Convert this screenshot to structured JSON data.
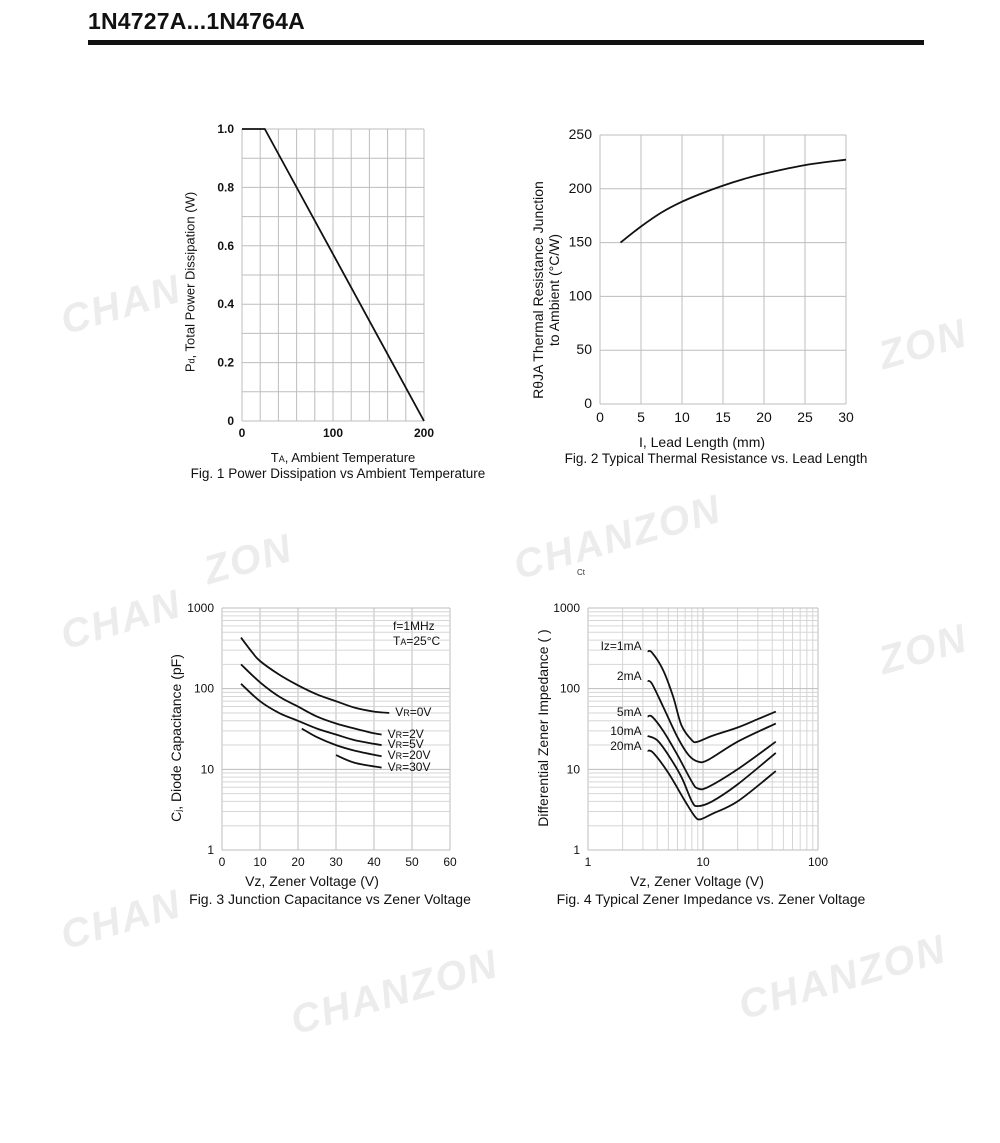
{
  "header": {
    "title": "1N4727A...1N4764A"
  },
  "watermarks": [
    "CHANZON",
    "CHAN",
    "ZON"
  ],
  "artifact_text": "Ct",
  "chart_data": [
    {
      "id": "fig1",
      "type": "line",
      "title": "Fig. 1 Power Dissipation vs Ambient Temperature",
      "xlabel": {
        "main": "T",
        "sub": "A",
        "rest": ", Ambient Temperature"
      },
      "ylabel": {
        "main": "P",
        "sub": "d",
        "rest": ", Total Power Dissipation (W)"
      },
      "xscale": "linear",
      "yscale": "linear",
      "xlim": [
        0,
        200
      ],
      "ylim": [
        0,
        1.0
      ],
      "grid": true,
      "x_grid_step": 20,
      "y_grid_step": 0.1,
      "xticks": [
        {
          "v": 0,
          "label": "0"
        },
        {
          "v": 100,
          "label": "100"
        },
        {
          "v": 200,
          "label": "200"
        }
      ],
      "yticks": [
        {
          "v": 0,
          "label": "0"
        },
        {
          "v": 0.2,
          "label": "0.2"
        },
        {
          "v": 0.4,
          "label": "0.4"
        },
        {
          "v": 0.6,
          "label": "0.6"
        },
        {
          "v": 0.8,
          "label": "0.8"
        },
        {
          "v": 1.0,
          "label": "1.0"
        }
      ],
      "tick_bold": true,
      "smooth": false,
      "series": [
        {
          "x": [
            0,
            25,
            200
          ],
          "y": [
            1.0,
            1.0,
            0
          ]
        }
      ]
    },
    {
      "id": "fig2",
      "type": "line",
      "title": "Fig. 2 Typical Thermal Resistance vs. Lead Length",
      "xlabel": {
        "main": "I, Lead Length (mm)"
      },
      "ylabel": {
        "line1": "RθJA  Thermal Resistance Junction",
        "line2": "to Ambient (°C/W)"
      },
      "xscale": "linear",
      "yscale": "linear",
      "xlim": [
        0,
        30
      ],
      "ylim": [
        0,
        250
      ],
      "grid": true,
      "x_grid_step": 5,
      "y_grid_step": 50,
      "xticks": [
        {
          "v": 0,
          "label": "0"
        },
        {
          "v": 5,
          "label": "5"
        },
        {
          "v": 10,
          "label": "10"
        },
        {
          "v": 15,
          "label": "15"
        },
        {
          "v": 20,
          "label": "20"
        },
        {
          "v": 25,
          "label": "25"
        },
        {
          "v": 30,
          "label": "30"
        }
      ],
      "yticks": [
        {
          "v": 0,
          "label": "0"
        },
        {
          "v": 50,
          "label": "50"
        },
        {
          "v": 100,
          "label": "100"
        },
        {
          "v": 150,
          "label": "150"
        },
        {
          "v": 200,
          "label": "200"
        },
        {
          "v": 250,
          "label": "250"
        }
      ],
      "tick_bold": false,
      "smooth": true,
      "series": [
        {
          "x": [
            2.5,
            5,
            7.5,
            10,
            12.5,
            15,
            17.5,
            20,
            25,
            30
          ],
          "y": [
            150,
            165,
            178,
            188,
            196,
            203,
            209,
            214,
            222,
            227
          ]
        }
      ]
    },
    {
      "id": "fig3",
      "type": "line",
      "title": "Fig. 3 Junction Capacitance vs Zener Voltage",
      "xlabel": {
        "main": "Vz, Zener Voltage (V)"
      },
      "ylabel": {
        "main": "C",
        "sub": "j",
        "rest": ", Diode Capacitance (pF)"
      },
      "annotations": [
        {
          "main": "f=1MHz"
        },
        {
          "main": "T",
          "sub": "A",
          "rest": "=25°C"
        }
      ],
      "xscale": "linear",
      "yscale": "log",
      "xlim": [
        0,
        60
      ],
      "ylim": [
        1,
        1000
      ],
      "grid": true,
      "x_grid_step": 10,
      "xticks": [
        {
          "v": 0,
          "label": "0"
        },
        {
          "v": 10,
          "label": "10"
        },
        {
          "v": 20,
          "label": "20"
        },
        {
          "v": 30,
          "label": "30"
        },
        {
          "v": 40,
          "label": "40"
        },
        {
          "v": 50,
          "label": "50"
        },
        {
          "v": 60,
          "label": "60"
        }
      ],
      "yticks": [
        {
          "v": 1,
          "label": "1"
        },
        {
          "v": 10,
          "label": "10"
        },
        {
          "v": 100,
          "label": "100"
        },
        {
          "v": 1000,
          "label": "1000"
        }
      ],
      "tick_bold": false,
      "smooth": true,
      "label_side": "right",
      "series": [
        {
          "name": "VR=0V",
          "label_main": "V",
          "label_sub": "R",
          "label_rest": "=0V",
          "x": [
            5,
            8,
            10,
            15,
            20,
            25,
            30,
            35,
            40,
            44
          ],
          "y": [
            430,
            280,
            220,
            150,
            110,
            85,
            70,
            58,
            52,
            50
          ]
        },
        {
          "name": "VR=2V",
          "label_main": "V",
          "label_sub": "R",
          "label_rest": "=2V",
          "x": [
            5,
            10,
            15,
            20,
            25,
            30,
            35,
            40,
            42
          ],
          "y": [
            200,
            120,
            80,
            60,
            45,
            37,
            32,
            28,
            27
          ]
        },
        {
          "name": "VR=5V",
          "label_main": "V",
          "label_sub": "R",
          "label_rest": "=5V",
          "x": [
            5,
            10,
            15,
            20,
            25,
            30,
            35,
            42
          ],
          "y": [
            115,
            70,
            50,
            40,
            32,
            27,
            23,
            20
          ]
        },
        {
          "name": "VR=20V",
          "label_main": "V",
          "label_sub": "R",
          "label_rest": "=20V",
          "x": [
            21,
            25,
            30,
            35,
            42
          ],
          "y": [
            32,
            25,
            20,
            17,
            14.5
          ]
        },
        {
          "name": "VR=30V",
          "label_main": "V",
          "label_sub": "R",
          "label_rest": "=30V",
          "x": [
            30,
            35,
            42
          ],
          "y": [
            15,
            12,
            10.5
          ]
        }
      ]
    },
    {
      "id": "fig4",
      "type": "line",
      "title": "Fig. 4 Typical Zener Impedance vs. Zener Voltage",
      "xlabel": {
        "main": "Vz, Zener Voltage (V)"
      },
      "ylabel": {
        "main": "Differential Zener Impedance (  )"
      },
      "xscale": "log",
      "yscale": "log",
      "xlim": [
        1,
        100
      ],
      "ylim": [
        1,
        1000
      ],
      "grid": true,
      "xticks": [
        {
          "v": 1,
          "label": "1"
        },
        {
          "v": 10,
          "label": "10"
        },
        {
          "v": 100,
          "label": "100"
        }
      ],
      "yticks": [
        {
          "v": 1,
          "label": "1"
        },
        {
          "v": 10,
          "label": "10"
        },
        {
          "v": 100,
          "label": "100"
        },
        {
          "v": 1000,
          "label": "1000"
        }
      ],
      "tick_bold": false,
      "smooth": true,
      "label_side": "left",
      "series": [
        {
          "name": "Iz=1mA",
          "label_main": "Iz=1mA",
          "x": [
            3.3,
            3.6,
            4.5,
            5.5,
            6.5,
            8,
            9,
            12,
            20,
            30,
            43
          ],
          "y": [
            290,
            280,
            170,
            80,
            35,
            23,
            22,
            26,
            33,
            42,
            52
          ]
        },
        {
          "name": "2mA",
          "label_main": "2mA",
          "x": [
            3.3,
            3.6,
            4.5,
            6,
            7.5,
            9,
            11,
            20,
            43
          ],
          "y": [
            125,
            115,
            60,
            25,
            15,
            12.5,
            13,
            22,
            37
          ]
        },
        {
          "name": "5mA",
          "label_main": "5mA",
          "x": [
            3.3,
            3.6,
            4.5,
            6,
            8,
            9,
            11,
            20,
            43
          ],
          "y": [
            45,
            45,
            30,
            15,
            7,
            5.8,
            6,
            10,
            22
          ]
        },
        {
          "name": "10mA",
          "label_main": "10mA",
          "x": [
            3.3,
            4,
            5,
            6.5,
            8,
            9,
            12,
            20,
            43
          ],
          "y": [
            26,
            23,
            15,
            8,
            4,
            3.5,
            4,
            6.5,
            16
          ]
        },
        {
          "name": "20mA",
          "label_main": "20mA",
          "x": [
            3.3,
            3.7,
            5,
            7,
            8.5,
            9.5,
            12,
            20,
            43
          ],
          "y": [
            17,
            16,
            9,
            4,
            2.6,
            2.4,
            2.8,
            4,
            9.5
          ]
        }
      ]
    }
  ]
}
